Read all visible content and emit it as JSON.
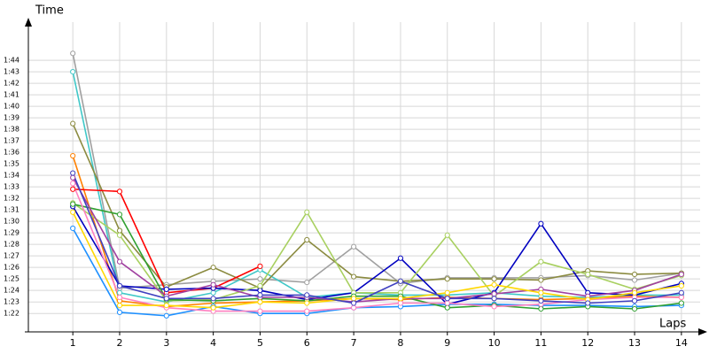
{
  "chart_data": {
    "type": "line",
    "x_label": "Laps",
    "y_label": "Time",
    "x": [
      1,
      2,
      3,
      4,
      5,
      6,
      7,
      8,
      9,
      10,
      11,
      12,
      13,
      14
    ],
    "xlim": [
      0.05,
      14.4
    ],
    "xticks": [
      1,
      2,
      3,
      4,
      5,
      6,
      7,
      8,
      9,
      10,
      11,
      12,
      13,
      14
    ],
    "ylim": [
      80.4,
      107.7
    ],
    "yticks": [
      {
        "value": 82,
        "label": "1:22"
      },
      {
        "value": 83,
        "label": "1:23"
      },
      {
        "value": 84,
        "label": "1:24"
      },
      {
        "value": 85,
        "label": "1:25"
      },
      {
        "value": 86,
        "label": "1:26"
      },
      {
        "value": 87,
        "label": "1:27"
      },
      {
        "value": 88,
        "label": "1:28"
      },
      {
        "value": 89,
        "label": "1:29"
      },
      {
        "value": 90,
        "label": "1:30"
      },
      {
        "value": 91,
        "label": "1:31"
      },
      {
        "value": 92,
        "label": "1:32"
      },
      {
        "value": 93,
        "label": "1:33"
      },
      {
        "value": 94,
        "label": "1:34"
      },
      {
        "value": 95,
        "label": "1:35"
      },
      {
        "value": 96,
        "label": "1:36"
      },
      {
        "value": 97,
        "label": "1:37"
      },
      {
        "value": 98,
        "label": "1:38"
      },
      {
        "value": 99,
        "label": "1:39"
      },
      {
        "value": 100,
        "label": "1:40"
      },
      {
        "value": 101,
        "label": "1:41"
      },
      {
        "value": 102,
        "label": "1:42"
      },
      {
        "value": 103,
        "label": "1:43"
      },
      {
        "value": 104,
        "label": "1:44"
      }
    ],
    "grid": true,
    "series": [
      {
        "color": "#a0a0a0",
        "values": [
          104.6,
          84.2,
          84.5,
          84.8,
          85.0,
          84.7,
          87.8,
          84.6,
          85.1,
          85.1,
          85.1,
          85.3,
          84.9,
          85.5
        ]
      },
      {
        "color": "#40c8c8",
        "values": [
          103.0,
          83.8,
          83.0,
          83.8,
          85.8,
          83.4,
          83.8,
          83.6,
          83.6,
          83.8,
          83.5,
          83.4,
          83.6,
          83.6
        ]
      },
      {
        "color": "#8b8b40",
        "values": [
          98.5,
          89.2,
          84.3,
          86.0,
          84.2,
          88.4,
          85.2,
          84.8,
          85.0,
          85.0,
          84.9,
          85.7,
          85.4,
          85.5
        ]
      },
      {
        "color": "#ff8000",
        "values": [
          95.7,
          83.1,
          82.6,
          82.9,
          83.0,
          83.1,
          83.3,
          83.2,
          83.4,
          83.3,
          83.2,
          83.3,
          83.5,
          83.4
        ]
      },
      {
        "color": "#ff0000",
        "values": [
          92.8,
          92.6,
          83.8,
          84.2,
          86.1,
          null,
          null,
          null,
          null,
          null,
          null,
          null,
          null,
          null
        ]
      },
      {
        "color": "#0000c0",
        "values": [
          91.3,
          84.4,
          84.1,
          84.2,
          84.0,
          83.2,
          83.8,
          86.8,
          82.8,
          83.8,
          89.8,
          83.8,
          83.6,
          84.6
        ]
      },
      {
        "color": "#1e90ff",
        "values": [
          89.4,
          82.1,
          81.8,
          82.6,
          82.0,
          82.0,
          82.5,
          82.6,
          82.8,
          82.8,
          82.7,
          82.7,
          82.6,
          82.7
        ]
      },
      {
        "color": "#a8d060",
        "values": [
          91.6,
          88.8,
          83.1,
          83.2,
          84.4,
          90.8,
          83.8,
          83.8,
          88.8,
          83.5,
          86.5,
          85.4,
          84.1,
          85.3
        ]
      },
      {
        "color": "#30a030",
        "values": [
          91.5,
          90.6,
          83.2,
          83.1,
          83.3,
          83.1,
          83.5,
          83.5,
          82.5,
          82.7,
          82.4,
          82.6,
          82.4,
          82.9
        ]
      },
      {
        "color": "#a040a0",
        "values": [
          93.8,
          86.5,
          83.5,
          84.5,
          83.4,
          83.4,
          83.0,
          83.3,
          83.3,
          83.7,
          84.1,
          83.5,
          84.0,
          85.4
        ]
      },
      {
        "color": "#ff80c0",
        "values": [
          93.3,
          83.4,
          82.5,
          82.2,
          82.2,
          82.2,
          82.5,
          82.9,
          82.9,
          82.6,
          82.8,
          83.2,
          83.4,
          83.4
        ]
      },
      {
        "color": "#ffd700",
        "values": [
          90.8,
          82.7,
          82.7,
          82.5,
          83.0,
          82.9,
          83.3,
          83.3,
          83.8,
          84.5,
          83.8,
          83.2,
          83.8,
          84.4
        ]
      },
      {
        "color": "#4040c0",
        "values": [
          94.2,
          84.4,
          83.3,
          83.3,
          83.6,
          83.6,
          82.9,
          84.8,
          83.3,
          83.3,
          83.1,
          82.9,
          83.1,
          83.8
        ]
      }
    ]
  }
}
